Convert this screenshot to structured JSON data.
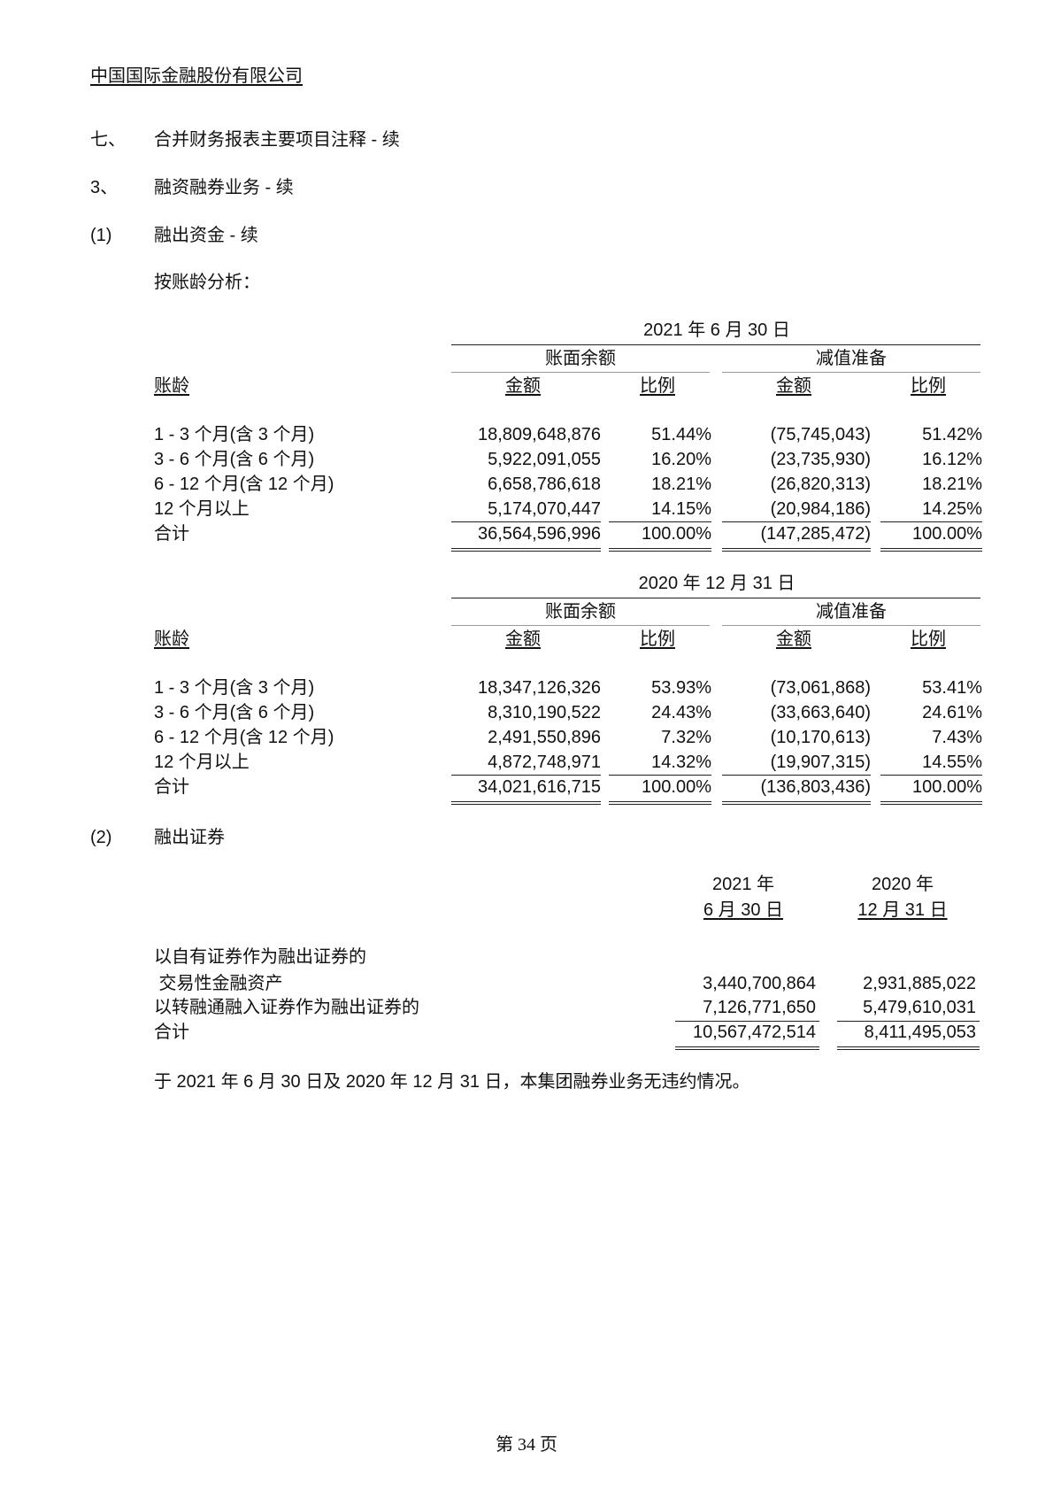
{
  "header": {
    "company": "中国国际金融股份有限公司"
  },
  "section": {
    "num": "七、",
    "title": "合并财务报表主要项目注释 - 续"
  },
  "subsection": {
    "num": "3、",
    "title": "融资融券业务 - 续"
  },
  "part1": {
    "num": "(1)",
    "title": "融出资金 - 续",
    "intro": "按账龄分析："
  },
  "aging_tables": [
    {
      "date": "2021 年 6 月 30 日",
      "group1": "账面余额",
      "group2": "减值准备",
      "label_header": "账龄",
      "col_headers": [
        "金额",
        "比例",
        "金额",
        "比例"
      ],
      "rows": [
        {
          "label": "1 - 3 个月(含 3 个月)",
          "amount": "18,809,648,876",
          "ratio": "51.44%",
          "impairment": "(75,745,043)",
          "imp_ratio": "51.42%"
        },
        {
          "label": "3 - 6 个月(含 6 个月)",
          "amount": "5,922,091,055",
          "ratio": "16.20%",
          "impairment": "(23,735,930)",
          "imp_ratio": "16.12%"
        },
        {
          "label": "6 - 12 个月(含 12 个月)",
          "amount": "6,658,786,618",
          "ratio": "18.21%",
          "impairment": "(26,820,313)",
          "imp_ratio": "18.21%"
        },
        {
          "label": "12 个月以上",
          "amount": "5,174,070,447",
          "ratio": "14.15%",
          "impairment": "(20,984,186)",
          "imp_ratio": "14.25%"
        }
      ],
      "total": {
        "label": "合计",
        "amount": "36,564,596,996",
        "ratio": "100.00%",
        "impairment": "(147,285,472)",
        "imp_ratio": "100.00%"
      }
    },
    {
      "date": "2020 年 12 月 31 日",
      "group1": "账面余额",
      "group2": "减值准备",
      "label_header": "账龄",
      "col_headers": [
        "金额",
        "比例",
        "金额",
        "比例"
      ],
      "rows": [
        {
          "label": "1 - 3 个月(含 3 个月)",
          "amount": "18,347,126,326",
          "ratio": "53.93%",
          "impairment": "(73,061,868)",
          "imp_ratio": "53.41%"
        },
        {
          "label": "3 - 6 个月(含 6 个月)",
          "amount": "8,310,190,522",
          "ratio": "24.43%",
          "impairment": "(33,663,640)",
          "imp_ratio": "24.61%"
        },
        {
          "label": "6 - 12 个月(含 12 个月)",
          "amount": "2,491,550,896",
          "ratio": "7.32%",
          "impairment": "(10,170,613)",
          "imp_ratio": "7.43%"
        },
        {
          "label": "12 个月以上",
          "amount": "4,872,748,971",
          "ratio": "14.32%",
          "impairment": "(19,907,315)",
          "imp_ratio": "14.55%"
        }
      ],
      "total": {
        "label": "合计",
        "amount": "34,021,616,715",
        "ratio": "100.00%",
        "impairment": "(136,803,436)",
        "imp_ratio": "100.00%"
      }
    }
  ],
  "part2": {
    "num": "(2)",
    "title": "融出证券",
    "col1": {
      "year": "2021 年",
      "date": "6 月 30 日"
    },
    "col2": {
      "year": "2020 年",
      "date": "12 月 31 日"
    },
    "rows": [
      {
        "label": "以自有证券作为融出证券的",
        "v1": "",
        "v2": ""
      },
      {
        "label": " 交易性金融资产",
        "v1": "3,440,700,864",
        "v2": "2,931,885,022"
      },
      {
        "label": "以转融通融入证券作为融出证券的",
        "v1": "7,126,771,650",
        "v2": "5,479,610,031"
      }
    ],
    "total": {
      "label": "合计",
      "v1": "10,567,472,514",
      "v2": "8,411,495,053"
    },
    "note": "于 2021 年 6 月 30 日及 2020 年 12 月 31 日，本集团融券业务无违约情况。"
  },
  "footer": {
    "page": "第 34 页"
  }
}
